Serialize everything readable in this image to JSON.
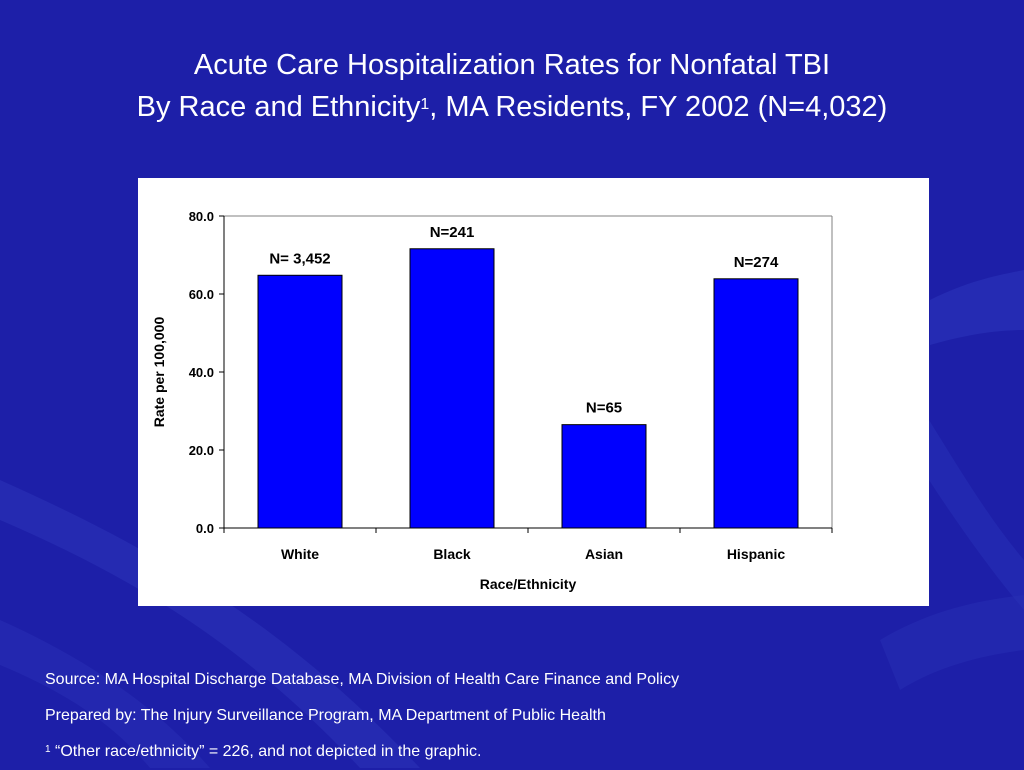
{
  "slide": {
    "title_line1": "Acute Care Hospitalization Rates for Nonfatal TBI",
    "title_line2_pre": "By Race and Ethnicity",
    "title_line2_sup": "1",
    "title_line2_post": ", MA Residents, FY 2002 (N=4,032)",
    "source": "Source: MA Hospital Discharge Database, MA Division of Health Care Finance and Policy",
    "prepared_by": "Prepared by: The Injury Surveillance Program, MA Department of Public Health",
    "footnote_sup": "1",
    "footnote_text": " “Other race/ethnicity” = 226, and not depicted in the graphic.",
    "colors": {
      "background": "#1d1fa8",
      "panel": "#ffffff",
      "bar": "#0000ff"
    }
  },
  "chart_data": {
    "type": "bar",
    "categories": [
      "White",
      "Black",
      "Asian",
      "Hispanic"
    ],
    "values": [
      64.8,
      71.6,
      26.5,
      63.9
    ],
    "data_labels": [
      "N= 3,452",
      "N=241",
      "N=65",
      "N=274"
    ],
    "ylim": [
      0,
      80
    ],
    "yticks": [
      "0.0",
      "20.0",
      "40.0",
      "60.0",
      "80.0"
    ],
    "xlabel": "Race/Ethnicity",
    "ylabel": "Rate per 100,000",
    "grid": false,
    "legend": "none"
  }
}
